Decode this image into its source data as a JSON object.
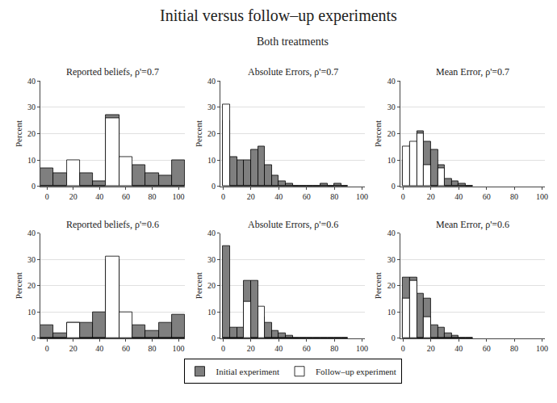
{
  "title": "Initial versus follow–up experiments",
  "subtitle": "Both treatments",
  "legend": "bottom",
  "chart_data": [
    {
      "type": "histogram",
      "title": "Reported beliefs, ρ'=0.7",
      "ylabel": "Percent",
      "bins": [
        -5,
        5,
        15,
        25,
        35,
        45,
        55,
        65,
        75,
        85,
        95,
        105
      ],
      "series": [
        {
          "name": "Initial experiment",
          "color": "#7f7f7f",
          "values": [
            7,
            5,
            5,
            5,
            2,
            27,
            3,
            8,
            5,
            4,
            10
          ]
        },
        {
          "name": "Follow–up experiment",
          "color": "#ffffff",
          "values": [
            0,
            0,
            10,
            0,
            0,
            26,
            11,
            0,
            0,
            0,
            0
          ]
        }
      ],
      "xlim": [
        -5,
        105
      ],
      "ylim": [
        0,
        40
      ],
      "xticks": [
        0,
        20,
        40,
        60,
        80,
        100
      ],
      "yticks": [
        0,
        10,
        20,
        30,
        40
      ],
      "grid": "y"
    },
    {
      "type": "histogram",
      "title": "Absolute Errors, ρ'=0.7",
      "ylabel": "Percent",
      "bins": [
        0,
        5,
        10,
        15,
        20,
        25,
        30,
        35,
        40,
        45,
        50,
        55,
        60,
        65,
        70,
        75,
        80,
        85,
        90
      ],
      "series": [
        {
          "name": "Initial experiment",
          "color": "#7f7f7f",
          "values": [
            25,
            11,
            10,
            10,
            14,
            15,
            8,
            4,
            2,
            1,
            0,
            0,
            0,
            0,
            1,
            0,
            1,
            0
          ]
        },
        {
          "name": "Follow–up experiment",
          "color": "#ffffff",
          "values": [
            31,
            0,
            0,
            0,
            0,
            0,
            0,
            0,
            0,
            0,
            0,
            0,
            0,
            0,
            0,
            0,
            0,
            0
          ]
        }
      ],
      "xlim": [
        -2,
        102
      ],
      "ylim": [
        0,
        40
      ],
      "xticks": [
        0,
        20,
        40,
        60,
        80,
        100
      ],
      "yticks": [
        0,
        10,
        20,
        30,
        40
      ],
      "grid": "y"
    },
    {
      "type": "histogram",
      "title": "Mean Error, ρ'=0.7",
      "ylabel": "Percent",
      "bins": [
        0,
        5,
        10,
        15,
        20,
        25,
        30,
        35,
        40,
        45,
        50
      ],
      "series": [
        {
          "name": "Initial experiment",
          "color": "#7f7f7f",
          "values": [
            10,
            16,
            21,
            17,
            14,
            8,
            3,
            2,
            1,
            0
          ]
        },
        {
          "name": "Follow–up experiment",
          "color": "#ffffff",
          "values": [
            15,
            17,
            20,
            8,
            0,
            7,
            0,
            0,
            0,
            0
          ]
        }
      ],
      "xlim": [
        -2,
        102
      ],
      "ylim": [
        0,
        40
      ],
      "xticks": [
        0,
        20,
        40,
        60,
        80,
        100
      ],
      "yticks": [
        0,
        10,
        20,
        30,
        40
      ],
      "grid": "y"
    },
    {
      "type": "histogram",
      "title": "Reported beliefs, ρ'=0.6",
      "ylabel": "Percent",
      "bins": [
        -5,
        5,
        15,
        25,
        35,
        45,
        55,
        65,
        75,
        85,
        95,
        105
      ],
      "series": [
        {
          "name": "Initial experiment",
          "color": "#7f7f7f",
          "values": [
            5,
            2,
            6,
            6,
            10,
            30,
            4,
            5,
            3,
            6,
            9
          ]
        },
        {
          "name": "Follow–up experiment",
          "color": "#ffffff",
          "values": [
            0,
            0,
            6,
            0,
            0,
            31,
            10,
            0,
            0,
            0,
            0
          ]
        }
      ],
      "xlim": [
        -5,
        105
      ],
      "ylim": [
        0,
        40
      ],
      "xticks": [
        0,
        20,
        40,
        60,
        80,
        100
      ],
      "yticks": [
        0,
        10,
        20,
        30,
        40
      ],
      "grid": "y"
    },
    {
      "type": "histogram",
      "title": "Absolute Errors, ρ'=0.6",
      "ylabel": "Percent",
      "bins": [
        0,
        5,
        10,
        15,
        20,
        25,
        30,
        35,
        40,
        45,
        50,
        55,
        60,
        65,
        70,
        75,
        80,
        85,
        90
      ],
      "series": [
        {
          "name": "Initial experiment",
          "color": "#7f7f7f",
          "values": [
            35,
            4,
            4,
            22,
            22,
            8,
            6,
            3,
            2,
            1,
            0,
            0,
            0,
            0,
            0,
            0,
            0,
            0
          ]
        },
        {
          "name": "Follow–up experiment",
          "color": "#ffffff",
          "values": [
            0,
            0,
            0,
            14,
            0,
            12,
            0,
            0,
            0,
            0,
            0,
            0,
            0,
            0,
            0,
            0,
            0,
            0
          ]
        }
      ],
      "xlim": [
        -2,
        102
      ],
      "ylim": [
        0,
        40
      ],
      "xticks": [
        0,
        20,
        40,
        60,
        80,
        100
      ],
      "yticks": [
        0,
        10,
        20,
        30,
        40
      ],
      "grid": "y"
    },
    {
      "type": "histogram",
      "title": "Mean Error, ρ'=0.6",
      "ylabel": "Percent",
      "bins": [
        0,
        5,
        10,
        15,
        20,
        25,
        30,
        35,
        40,
        45,
        50
      ],
      "series": [
        {
          "name": "Initial experiment",
          "color": "#7f7f7f",
          "values": [
            23,
            23,
            17,
            15,
            5,
            4,
            2,
            1,
            0,
            0
          ]
        },
        {
          "name": "Follow–up experiment",
          "color": "#ffffff",
          "values": [
            15,
            22,
            0,
            8,
            0,
            0,
            0,
            0,
            0,
            0
          ]
        }
      ],
      "xlim": [
        -2,
        102
      ],
      "ylim": [
        0,
        40
      ],
      "xticks": [
        0,
        20,
        40,
        60,
        80,
        100
      ],
      "yticks": [
        0,
        10,
        20,
        30,
        40
      ],
      "grid": "y"
    }
  ]
}
